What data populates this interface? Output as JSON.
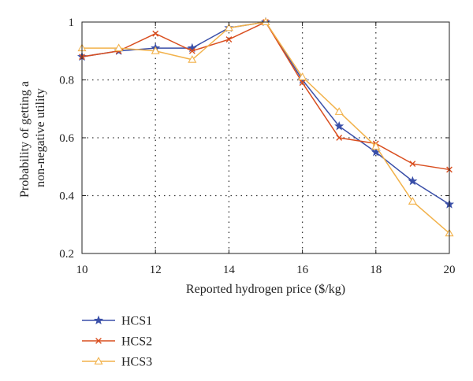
{
  "chart_data": {
    "type": "line",
    "title": "",
    "xlabel": "Reported hydrogen price ($/kg)",
    "ylabel_lines": [
      "Probability of getting a",
      "non-negative utility"
    ],
    "xlim": [
      10,
      20
    ],
    "ylim": [
      0.2,
      1.0
    ],
    "xticks": [
      "10",
      "12",
      "14",
      "16",
      "18",
      "20"
    ],
    "yticks": [
      "0.2",
      "0.4",
      "0.6",
      "0.8",
      "1"
    ],
    "grid": true,
    "legend_position": "below",
    "x": [
      10,
      11,
      12,
      13,
      14,
      15,
      16,
      17,
      18,
      19,
      20
    ],
    "series": [
      {
        "name": "HCS1",
        "color": "#3a4fa8",
        "marker": "star",
        "values": [
          0.88,
          0.9,
          0.91,
          0.91,
          0.98,
          1.0,
          0.8,
          0.64,
          0.55,
          0.45,
          0.37
        ]
      },
      {
        "name": "HCS2",
        "color": "#d94e1f",
        "marker": "x",
        "values": [
          0.88,
          0.9,
          0.96,
          0.9,
          0.94,
          1.0,
          0.79,
          0.6,
          0.58,
          0.51,
          0.49
        ]
      },
      {
        "name": "HCS3",
        "color": "#f2b24b",
        "marker": "triangle",
        "values": [
          0.91,
          0.91,
          0.9,
          0.87,
          0.98,
          1.0,
          0.81,
          0.69,
          0.57,
          0.38,
          0.27
        ]
      }
    ]
  }
}
